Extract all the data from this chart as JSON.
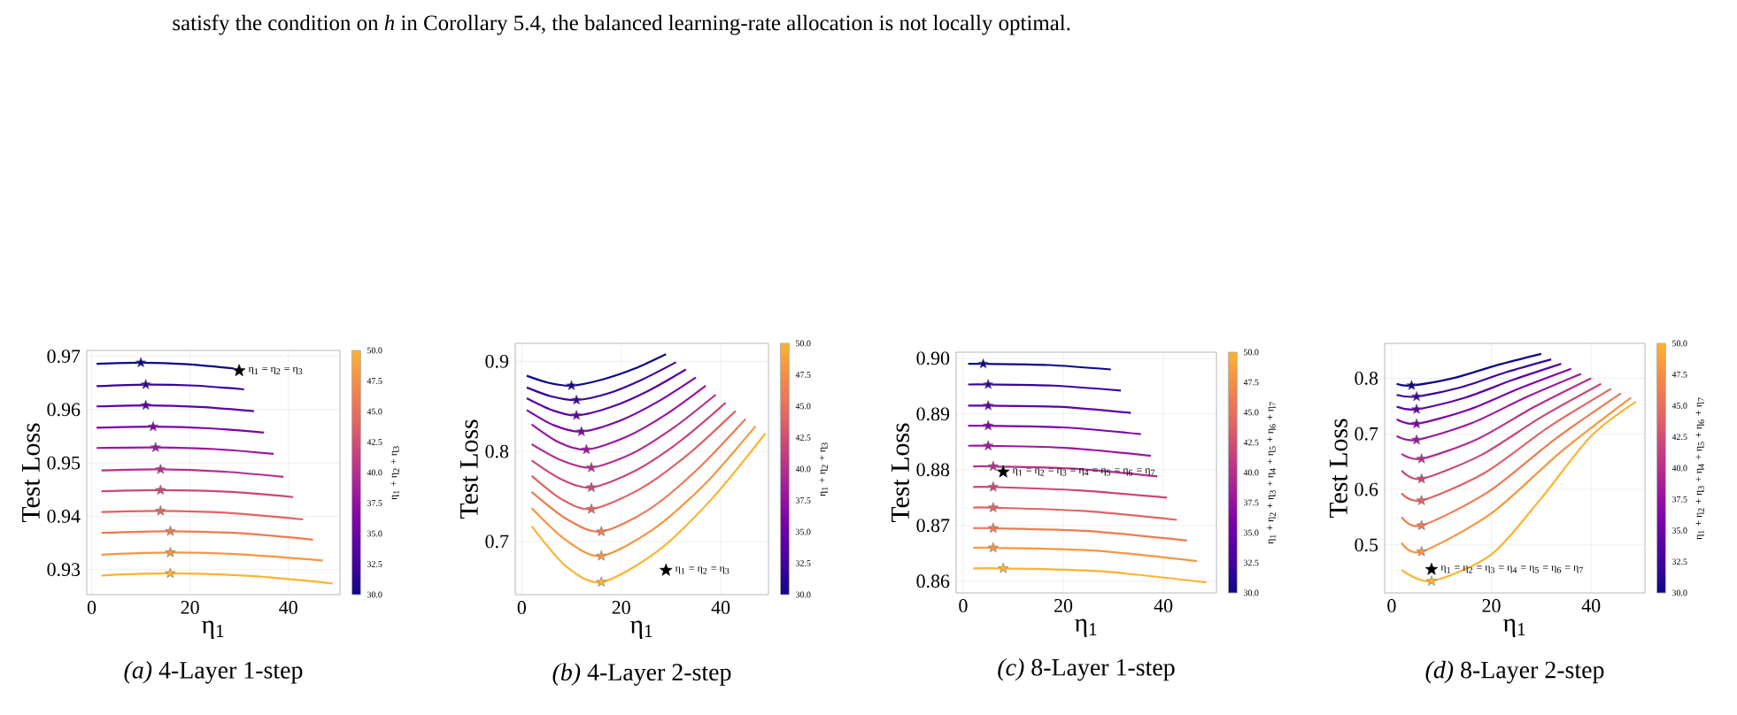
{
  "chart_data": [
    {
      "type": "line",
      "title": "*(a)* 4-Layer 1-step",
      "xlabel": "η$_{1}$",
      "ylabel": "Test Loss",
      "clabel": "η$_{1}$ + η$_{2}$ + η$_{3}$",
      "annotations": [
        "satisfy the condition on *h* in Corollary 5.4, the balanced learning-rate allocation is not locally optimal."
      ],
      "xlim": [
        -1,
        50.5
      ],
      "ylim": [
        0.9253,
        0.9711
      ],
      "xticks": [
        0,
        20,
        40
      ],
      "yticks": [
        0.93,
        0.94,
        0.95,
        0.96,
        0.97
      ],
      "clim": [
        30,
        50
      ],
      "cticks": [
        {
          "value": 30,
          "label": "30.0"
        },
        32.5,
        {
          "value": 35,
          "label": "35.0"
        },
        37.5,
        {
          "value": 40,
          "label": "40.0"
        },
        42.5,
        {
          "value": 45,
          "label": "45.0"
        },
        47.5,
        {
          "value": 50,
          "label": "50.0"
        }
      ],
      "grid": true,
      "series": [
        {
          "type": "line",
          "color": "#0d0887",
          "x": [
            1,
            10,
            19.5,
            29
          ],
          "values": [
            0.9686,
            0.9688,
            0.9685,
            0.9677
          ]
        },
        {
          "type": "line",
          "color": "#3a049a",
          "x": [
            1,
            11,
            21,
            31
          ],
          "values": [
            0.9644,
            0.9647,
            0.9645,
            0.9638
          ]
        },
        {
          "type": "line",
          "color": "#5c01a6",
          "x": [
            1,
            11,
            22,
            33
          ],
          "values": [
            0.9606,
            0.9608,
            0.9605,
            0.9597
          ]
        },
        {
          "type": "line",
          "color": "#7e03a8",
          "x": [
            1,
            12.5,
            23.8,
            35
          ],
          "values": [
            0.9566,
            0.9568,
            0.9565,
            0.9557
          ]
        },
        {
          "type": "line",
          "color": "#9c179e",
          "x": [
            1,
            13,
            25,
            37
          ],
          "values": [
            0.9528,
            0.9529,
            0.9526,
            0.9517
          ]
        },
        {
          "type": "line",
          "color": "#b52f8c",
          "x": [
            2,
            14,
            26.5,
            39
          ],
          "values": [
            0.9486,
            0.9488,
            0.9484,
            0.9474
          ]
        },
        {
          "type": "line",
          "color": "#cc4778",
          "x": [
            2,
            14,
            27.5,
            41
          ],
          "values": [
            0.9447,
            0.9449,
            0.9446,
            0.9436
          ]
        },
        {
          "type": "line",
          "color": "#e16462",
          "x": [
            2,
            14,
            28.5,
            43
          ],
          "values": [
            0.9408,
            0.941,
            0.9406,
            0.9394
          ]
        },
        {
          "type": "line",
          "color": "#ee7b51",
          "x": [
            2,
            16,
            30.5,
            45
          ],
          "values": [
            0.9369,
            0.9372,
            0.9368,
            0.9356
          ]
        },
        {
          "type": "line",
          "color": "#f89540",
          "x": [
            2,
            16,
            31.5,
            47
          ],
          "values": [
            0.9328,
            0.9332,
            0.9328,
            0.9317
          ]
        },
        {
          "type": "line",
          "color": "#fdb32f",
          "x": [
            2,
            16,
            32.5,
            49
          ],
          "values": [
            0.9289,
            0.9293,
            0.9288,
            0.9274
          ]
        },
        {
          "type": "scatter",
          "marker": "star",
          "x": [
            10,
            11,
            11,
            12.5,
            13,
            14,
            14,
            14,
            16,
            16,
            16
          ],
          "values": [
            0.9688,
            0.9647,
            0.9608,
            0.9568,
            0.9529,
            0.9488,
            0.9449,
            0.941,
            0.9372,
            0.9332,
            0.9293
          ],
          "colors": [
            "#0d0887",
            "#3a049a",
            "#5c01a6",
            "#7e03a8",
            "#9c179e",
            "#b52f8c",
            "#cc4778",
            "#e16462",
            "#ee7b51",
            "#f89540",
            "#fdb32f"
          ]
        },
        {
          "type": "scatter",
          "marker": "star",
          "name": "η$_{1}$ = η$_{2}$ = η$_{3}$",
          "color": "#000000",
          "x": [
            30
          ],
          "values": [
            0.9673
          ]
        }
      ]
    },
    {
      "type": "line",
      "title": "*(b)* 4-Layer 2-step",
      "xlabel": "η$_{1}$",
      "ylabel": "Test Loss",
      "clabel": "η$_{1}$ + η$_{2}$ + η$_{3}$",
      "xlim": [
        -1.3,
        49.6
      ],
      "ylim": [
        0.641,
        0.92
      ],
      "xticks": [
        0,
        20,
        40
      ],
      "yticks": [
        0.7,
        0.8,
        0.9
      ],
      "clim": [
        30,
        50
      ],
      "cticks": [
        {
          "value": 30,
          "label": "30.0"
        },
        32.5,
        {
          "value": 35,
          "label": "35.0"
        },
        37.5,
        {
          "value": 40,
          "label": "40.0"
        },
        42.5,
        {
          "value": 45,
          "label": "45.0"
        },
        47.5,
        {
          "value": 50,
          "label": "50.0"
        }
      ],
      "grid": true,
      "series": [
        {
          "type": "line",
          "color": "#0d0887",
          "x": [
            1,
            5.5,
            10,
            16.3,
            22.7,
            29
          ],
          "values": [
            0.884,
            0.876,
            0.873,
            0.88,
            0.892,
            0.908
          ]
        },
        {
          "type": "line",
          "color": "#3a049a",
          "x": [
            1,
            6,
            11,
            17.7,
            24.3,
            31
          ],
          "values": [
            0.871,
            0.861,
            0.857,
            0.865,
            0.88,
            0.899
          ]
        },
        {
          "type": "line",
          "color": "#5c01a6",
          "x": [
            1,
            6,
            11,
            18.3,
            25.7,
            33
          ],
          "values": [
            0.859,
            0.846,
            0.84,
            0.85,
            0.868,
            0.891
          ]
        },
        {
          "type": "line",
          "color": "#7e03a8",
          "x": [
            1,
            6.5,
            12,
            19.7,
            27.3,
            35
          ],
          "values": [
            0.846,
            0.829,
            0.822,
            0.834,
            0.855,
            0.882
          ]
        },
        {
          "type": "line",
          "color": "#9c179e",
          "x": [
            2,
            7.5,
            13,
            21,
            29,
            37
          ],
          "values": [
            0.83,
            0.81,
            0.802,
            0.816,
            0.841,
            0.873
          ]
        },
        {
          "type": "line",
          "color": "#b52f8c",
          "x": [
            2,
            8,
            14,
            22.3,
            30.7,
            39
          ],
          "values": [
            0.808,
            0.79,
            0.782,
            0.798,
            0.827,
            0.863
          ]
        },
        {
          "type": "line",
          "color": "#cc4778",
          "x": [
            2,
            8,
            14,
            23,
            32,
            41
          ],
          "values": [
            0.79,
            0.769,
            0.76,
            0.779,
            0.812,
            0.854
          ]
        },
        {
          "type": "line",
          "color": "#e16462",
          "x": [
            2,
            8,
            14,
            23.7,
            33.3,
            43
          ],
          "values": [
            0.773,
            0.747,
            0.736,
            0.758,
            0.796,
            0.845
          ]
        },
        {
          "type": "line",
          "color": "#ee7b51",
          "x": [
            2,
            9,
            16,
            25.7,
            35.3,
            45
          ],
          "values": [
            0.755,
            0.725,
            0.711,
            0.736,
            0.78,
            0.836
          ]
        },
        {
          "type": "line",
          "color": "#f89540",
          "x": [
            2,
            9,
            16,
            26.3,
            36.7,
            47
          ],
          "values": [
            0.737,
            0.701,
            0.684,
            0.713,
            0.763,
            0.828
          ]
        },
        {
          "type": "line",
          "color": "#fdb32f",
          "x": [
            2,
            9,
            16,
            27,
            38,
            49
          ],
          "values": [
            0.717,
            0.672,
            0.655,
            0.688,
            0.746,
            0.82
          ]
        },
        {
          "type": "scatter",
          "marker": "star",
          "x": [
            10,
            11,
            11,
            12,
            13,
            14,
            14,
            14,
            16,
            16,
            16
          ],
          "values": [
            0.873,
            0.857,
            0.84,
            0.822,
            0.802,
            0.782,
            0.76,
            0.736,
            0.711,
            0.684,
            0.655
          ],
          "colors": [
            "#0d0887",
            "#3a049a",
            "#5c01a6",
            "#7e03a8",
            "#9c179e",
            "#b52f8c",
            "#cc4778",
            "#e16462",
            "#ee7b51",
            "#f89540",
            "#fdb32f"
          ]
        },
        {
          "type": "scatter",
          "marker": "star",
          "name": "η$_{1}$ = η$_{2}$ = η$_{3}$",
          "color": "#000000",
          "x": [
            29
          ],
          "values": [
            0.668
          ]
        }
      ]
    },
    {
      "type": "line",
      "title": "*(c)* 8-Layer 1-step",
      "xlabel": "η$_{1}$",
      "ylabel": "Test Loss",
      "clabel": "η$_{1}$ + η$_{2}$ + η$_{3}$ + η$_{4}$ + η$_{5}$ + η$_{6}$ + η$_{7}$",
      "xlim": [
        -1.4,
        50.6
      ],
      "ylim": [
        0.8579,
        0.9011
      ],
      "xticks": [
        0,
        20,
        40
      ],
      "yticks": [
        0.86,
        0.87,
        0.88,
        0.89,
        {
          "value": 0.9,
          "label": "0.90"
        }
      ],
      "clim": [
        30,
        50
      ],
      "cticks": [
        {
          "value": 30,
          "label": "30.0"
        },
        32.5,
        {
          "value": 35,
          "label": "35.0"
        },
        37.5,
        {
          "value": 40,
          "label": "40.0"
        },
        42.5,
        {
          "value": 45,
          "label": "45.0"
        },
        47.5,
        {
          "value": 50,
          "label": "50.0"
        }
      ],
      "grid": true,
      "series": [
        {
          "type": "line",
          "color": "#0d0887",
          "x": [
            1,
            4,
            17,
            29.5
          ],
          "values": [
            0.899,
            0.899,
            0.8988,
            0.898
          ]
        },
        {
          "type": "line",
          "color": "#3a049a",
          "x": [
            1,
            5,
            18,
            31.5
          ],
          "values": [
            0.8953,
            0.8953,
            0.8951,
            0.8942
          ]
        },
        {
          "type": "line",
          "color": "#5c01a6",
          "x": [
            1,
            5,
            19,
            33.5
          ],
          "values": [
            0.8915,
            0.8915,
            0.8913,
            0.8902
          ]
        },
        {
          "type": "line",
          "color": "#7e03a8",
          "x": [
            1,
            5,
            20,
            35.5
          ],
          "values": [
            0.8879,
            0.8879,
            0.8876,
            0.8864
          ]
        },
        {
          "type": "line",
          "color": "#9c179e",
          "x": [
            1,
            5,
            21,
            37.5
          ],
          "values": [
            0.8843,
            0.8843,
            0.8839,
            0.8825
          ]
        },
        {
          "type": "line",
          "color": "#b52f8c",
          "x": [
            2,
            6,
            22,
            38.8
          ],
          "values": [
            0.8806,
            0.8806,
            0.8802,
            0.8788
          ]
        },
        {
          "type": "line",
          "color": "#cc4778",
          "x": [
            2,
            6,
            23,
            40.7
          ],
          "values": [
            0.8769,
            0.8769,
            0.8763,
            0.875
          ]
        },
        {
          "type": "line",
          "color": "#e16462",
          "x": [
            2,
            6,
            24,
            42.7
          ],
          "values": [
            0.8732,
            0.8732,
            0.8726,
            0.871
          ]
        },
        {
          "type": "line",
          "color": "#ee7b51",
          "x": [
            2,
            6,
            25,
            44.7
          ],
          "values": [
            0.8695,
            0.8695,
            0.869,
            0.8673
          ]
        },
        {
          "type": "line",
          "color": "#f89540",
          "x": [
            2,
            6,
            26,
            46.7
          ],
          "values": [
            0.866,
            0.866,
            0.8655,
            0.8636
          ]
        },
        {
          "type": "line",
          "color": "#fdb32f",
          "x": [
            2,
            8,
            27,
            48.6
          ],
          "values": [
            0.8623,
            0.8623,
            0.8618,
            0.8598
          ]
        },
        {
          "type": "scatter",
          "marker": "star",
          "x": [
            4,
            5,
            5,
            5,
            5,
            6,
            6,
            6,
            6,
            6,
            8
          ],
          "values": [
            0.899,
            0.8953,
            0.8915,
            0.8879,
            0.8843,
            0.8806,
            0.8769,
            0.8732,
            0.8695,
            0.866,
            0.8623
          ],
          "colors": [
            "#0d0887",
            "#3a049a",
            "#5c01a6",
            "#7e03a8",
            "#9c179e",
            "#b52f8c",
            "#cc4778",
            "#e16462",
            "#ee7b51",
            "#f89540",
            "#fdb32f"
          ]
        },
        {
          "type": "scatter",
          "marker": "star",
          "name": "η$_{1}$ = η$_{2}$ = η$_{3}$ = η$_{4}$ = η$_{5}$ = η$_{6}$ = η$_{7}$",
          "color": "#000000",
          "x": [
            8
          ],
          "values": [
            0.8796
          ]
        }
      ]
    },
    {
      "type": "line",
      "title": "*(d)* 8-Layer 2-step",
      "xlabel": "η$_{1}$",
      "ylabel": "Test Loss",
      "clabel": "η$_{1}$ + η$_{2}$ + η$_{3}$ + η$_{4}$ + η$_{5}$ + η$_{6}$ + η$_{7}$",
      "xlim": [
        -1.4,
        50.8
      ],
      "ylim": [
        0.4138,
        0.8628
      ],
      "xticks": [
        0,
        20,
        40
      ],
      "yticks": [
        0.5,
        0.6,
        0.7,
        0.8
      ],
      "clim": [
        30,
        50
      ],
      "cticks": [
        {
          "value": 30,
          "label": "30.0"
        },
        32.5,
        {
          "value": 35,
          "label": "35.0"
        },
        37.5,
        {
          "value": 40,
          "label": "40.0"
        },
        42.5,
        {
          "value": 45,
          "label": "45.0"
        },
        47.5,
        {
          "value": 50,
          "label": "50.0"
        }
      ],
      "grid": true,
      "series": [
        {
          "type": "line",
          "color": "#0d0887",
          "x": [
            1,
            4,
            12.7,
            21.3,
            30
          ],
          "values": [
            0.79,
            0.787,
            0.801,
            0.824,
            0.844
          ]
        },
        {
          "type": "line",
          "color": "#3a049a",
          "x": [
            1,
            5,
            14,
            23,
            32
          ],
          "values": [
            0.77,
            0.767,
            0.784,
            0.811,
            0.834
          ]
        },
        {
          "type": "line",
          "color": "#5c01a6",
          "x": [
            1,
            5,
            14.7,
            24.3,
            34
          ],
          "values": [
            0.749,
            0.744,
            0.765,
            0.797,
            0.826
          ]
        },
        {
          "type": "line",
          "color": "#7e03a8",
          "x": [
            1,
            5,
            15.3,
            25.7,
            36
          ],
          "values": [
            0.726,
            0.718,
            0.743,
            0.782,
            0.817
          ]
        },
        {
          "type": "line",
          "color": "#9c179e",
          "x": [
            1,
            5,
            16,
            27,
            38
          ],
          "values": [
            0.696,
            0.689,
            0.719,
            0.766,
            0.808
          ]
        },
        {
          "type": "line",
          "color": "#b52f8c",
          "x": [
            2,
            6,
            17.3,
            28.7,
            40
          ],
          "values": [
            0.664,
            0.655,
            0.691,
            0.749,
            0.8
          ]
        },
        {
          "type": "line",
          "color": "#cc4778",
          "x": [
            2,
            6,
            18,
            30,
            42
          ],
          "values": [
            0.634,
            0.619,
            0.662,
            0.73,
            0.79
          ]
        },
        {
          "type": "line",
          "color": "#e16462",
          "x": [
            2,
            6,
            18.7,
            31.3,
            44
          ],
          "values": [
            0.593,
            0.58,
            0.63,
            0.711,
            0.781
          ]
        },
        {
          "type": "line",
          "color": "#ee7b51",
          "x": [
            2,
            6,
            19.3,
            32.7,
            46
          ],
          "values": [
            0.55,
            0.535,
            0.595,
            0.69,
            0.773
          ]
        },
        {
          "type": "line",
          "color": "#f89540",
          "x": [
            2,
            6,
            20,
            34,
            48
          ],
          "values": [
            0.504,
            0.488,
            0.557,
            0.668,
            0.765
          ]
        },
        {
          "type": "line",
          "color": "#fdb32f",
          "x": [
            2,
            8,
            20,
            30,
            40,
            49
          ],
          "values": [
            0.455,
            0.435,
            0.483,
            0.584,
            0.696,
            0.758
          ]
        },
        {
          "type": "scatter",
          "marker": "star",
          "x": [
            4,
            5,
            5,
            5,
            5,
            6,
            6,
            6,
            6,
            6,
            8
          ],
          "values": [
            0.787,
            0.767,
            0.744,
            0.718,
            0.689,
            0.655,
            0.619,
            0.58,
            0.535,
            0.488,
            0.435
          ],
          "colors": [
            "#0d0887",
            "#3a049a",
            "#5c01a6",
            "#7e03a8",
            "#9c179e",
            "#b52f8c",
            "#cc4778",
            "#e16462",
            "#ee7b51",
            "#f89540",
            "#fdb32f"
          ]
        },
        {
          "type": "scatter",
          "marker": "star",
          "name": "η$_{1}$ = η$_{2}$ = η$_{3}$ = η$_{4}$ = η$_{5}$ = η$_{6}$ = η$_{7}$",
          "color": "#000000",
          "x": [
            8
          ],
          "values": [
            0.456
          ]
        }
      ]
    }
  ]
}
